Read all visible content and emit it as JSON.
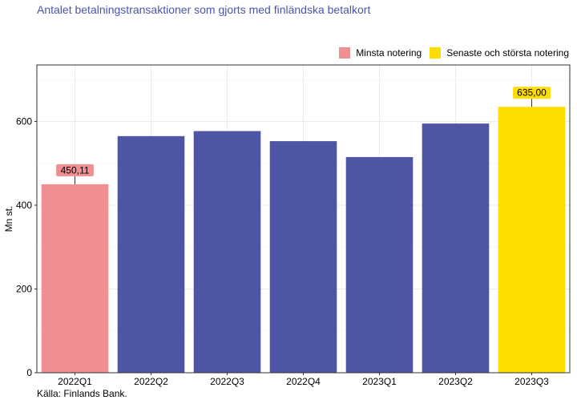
{
  "title": "Antalet betalningstransaktioner som gjorts med finländska betalkort",
  "source": "Källa: Finlands Bank.",
  "legend": {
    "items": [
      {
        "label": "Minsta notering",
        "color": "#f08f92"
      },
      {
        "label": "Senaste och största notering",
        "color": "#ffdd00"
      }
    ]
  },
  "chart_data": {
    "type": "bar",
    "categories": [
      "2022Q1",
      "2022Q2",
      "2022Q3",
      "2022Q4",
      "2023Q1",
      "2023Q2",
      "2023Q3"
    ],
    "values": [
      450.11,
      565,
      577,
      553,
      515,
      595,
      635.0
    ],
    "colors": [
      "#f08f92",
      "#4d55a4",
      "#4d55a4",
      "#4d55a4",
      "#4d55a4",
      "#4d55a4",
      "#ffdd00"
    ],
    "data_labels": {
      "0": "450,11",
      "6": "635,00"
    },
    "ylabel": "Mn st.",
    "xlabel": "",
    "ylim": [
      0,
      735
    ],
    "yticks": [
      0,
      200,
      400,
      600
    ],
    "grid": true,
    "legend_position": "top-right"
  }
}
